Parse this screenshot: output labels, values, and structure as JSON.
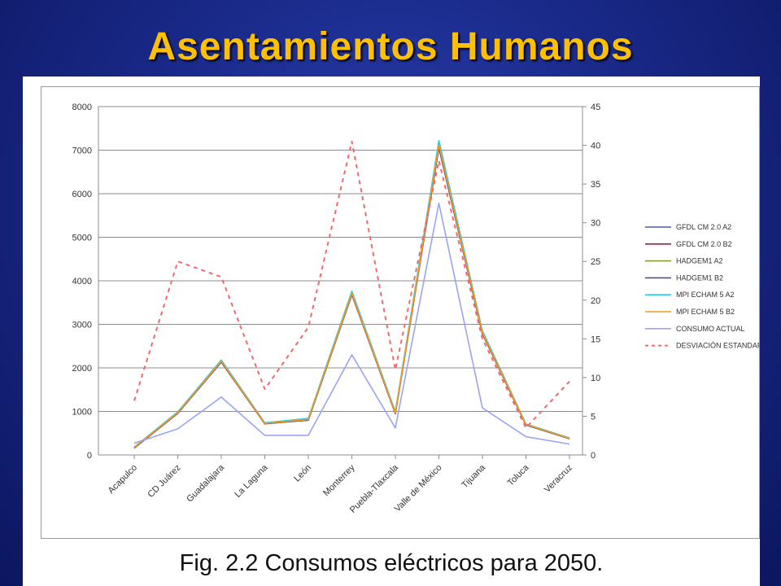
{
  "slide": {
    "title": "Asentamientos Humanos",
    "caption": "Fig. 2.2  Consumos eléctricos para 2050."
  },
  "chart_data": {
    "type": "line",
    "categories": [
      "Acapulco",
      "CD Juárez",
      "Guadalajara",
      "La Laguna",
      "León",
      "Monterrey",
      "Puebla-Tlaxcala",
      "Valle de México",
      "Tijuana",
      "Toluca",
      "Veracruz"
    ],
    "ylim": [
      0,
      8000
    ],
    "yticks": [
      0,
      1000,
      2000,
      3000,
      4000,
      5000,
      6000,
      7000,
      8000
    ],
    "y2lim": [
      0,
      45
    ],
    "y2ticks": [
      0,
      5,
      10,
      15,
      20,
      25,
      30,
      35,
      40,
      45
    ],
    "grid": true,
    "legend_position": "right",
    "series": [
      {
        "name": "GFDL CM 2.0 A2",
        "color": "#4a5aa8",
        "axis": "left",
        "values": [
          160,
          960,
          2150,
          720,
          810,
          3700,
          960,
          7100,
          2800,
          700,
          380
        ]
      },
      {
        "name": "GFDL CM 2.0 B2",
        "color": "#9b1f4a",
        "axis": "left",
        "values": [
          160,
          960,
          2140,
          720,
          800,
          3690,
          950,
          7080,
          2790,
          690,
          375
        ]
      },
      {
        "name": "HADGEM1 A2",
        "color": "#8a9a2a",
        "axis": "left",
        "values": [
          170,
          980,
          2160,
          730,
          820,
          3720,
          970,
          7150,
          2820,
          705,
          385
        ]
      },
      {
        "name": "HADGEM1 B2",
        "color": "#5a4a8a",
        "axis": "left",
        "values": [
          160,
          955,
          2130,
          715,
          800,
          3680,
          950,
          7050,
          2780,
          690,
          375
        ]
      },
      {
        "name": "MPI ECHAM 5 A2",
        "color": "#30c8e0",
        "axis": "left",
        "values": [
          180,
          990,
          2180,
          740,
          840,
          3760,
          990,
          7220,
          2850,
          710,
          390
        ]
      },
      {
        "name": "MPI ECHAM 5 B2",
        "color": "#f39a1a",
        "axis": "left",
        "values": [
          170,
          970,
          2150,
          725,
          815,
          3710,
          965,
          7120,
          2810,
          700,
          380
        ]
      },
      {
        "name": "CONSUMO ACTUAL",
        "color": "#9aa4f0",
        "axis": "left",
        "values": [
          270,
          600,
          1330,
          450,
          450,
          2300,
          620,
          5780,
          1080,
          420,
          250
        ]
      },
      {
        "name": "DESVIACIÓN ESTANDAR",
        "color": "#f06a6a",
        "axis": "right",
        "dashed": true,
        "values": [
          7,
          25,
          23,
          8.5,
          16.5,
          40.5,
          11,
          38,
          15,
          3.5,
          9.5
        ]
      }
    ]
  }
}
